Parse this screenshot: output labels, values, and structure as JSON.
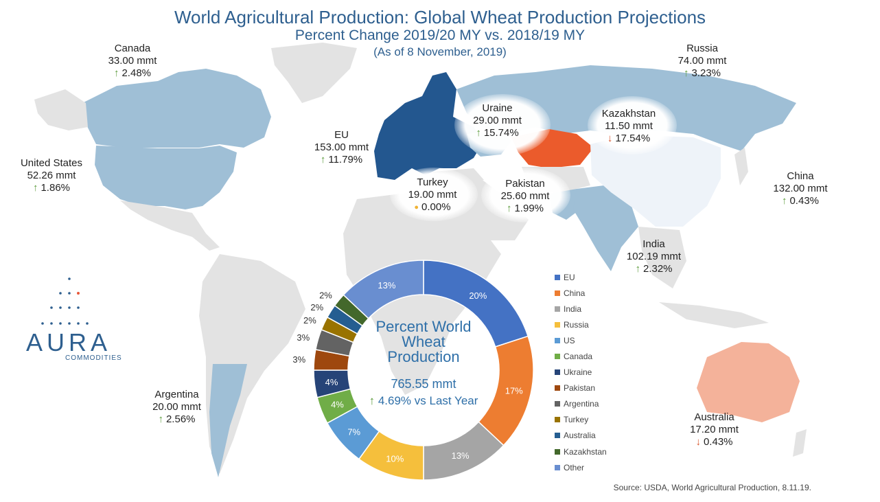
{
  "title": "World Agricultural Production: Global Wheat Production Projections",
  "subtitle": "Percent Change 2019/20 MY vs. 2018/19 MY",
  "date_note": "(As of 8 November, 2019)",
  "source": "Source: USDA, World Agricultural Production, 8.11.19.",
  "logo": {
    "name": "AURA",
    "sub": "COMMODITIES"
  },
  "colors": {
    "map_land": "#e3e3e3",
    "map_up": "#9fbfd6",
    "map_dark": "#23578f",
    "map_down": "#eb5b2c",
    "map_china": "#eef3f9",
    "map_australia": "#f4b29a",
    "title": "#2e5f8f"
  },
  "countries": [
    {
      "id": "canada",
      "name": "Canada",
      "value": "33.00 mmt",
      "change": "2.48%",
      "dir": "up"
    },
    {
      "id": "us",
      "name": "United States",
      "value": "52.26 mmt",
      "change": "1.86%",
      "dir": "up"
    },
    {
      "id": "eu",
      "name": "EU",
      "value": "153.00 mmt",
      "change": "11.79%",
      "dir": "up"
    },
    {
      "id": "ukraine",
      "name": "Uraine",
      "value": "29.00 mmt",
      "change": "15.74%",
      "dir": "up"
    },
    {
      "id": "russia",
      "name": "Russia",
      "value": "74.00 mmt",
      "change": "3.23%",
      "dir": "up"
    },
    {
      "id": "kazakhstan",
      "name": "Kazakhstan",
      "value": "11.50 mmt",
      "change": "17.54%",
      "dir": "down"
    },
    {
      "id": "turkey",
      "name": "Turkey",
      "value": "19.00 mmt",
      "change": "0.00%",
      "dir": "flat"
    },
    {
      "id": "pakistan",
      "name": "Pakistan",
      "value": "25.60 mmt",
      "change": "1.99%",
      "dir": "up"
    },
    {
      "id": "china",
      "name": "China",
      "value": "132.00 mmt",
      "change": "0.43%",
      "dir": "up"
    },
    {
      "id": "india",
      "name": "India",
      "value": "102.19 mmt",
      "change": "2.32%",
      "dir": "up"
    },
    {
      "id": "argentina",
      "name": "Argentina",
      "value": "20.00 mmt",
      "change": "2.56%",
      "dir": "up"
    },
    {
      "id": "australia",
      "name": "Australia",
      "value": "17.20 mmt",
      "change": "0.43%",
      "dir": "down"
    }
  ],
  "chart_data": {
    "type": "pie",
    "donut": true,
    "title": "Percent World Wheat Production",
    "center_value": "765.55 mmt",
    "center_change": "4.69% vs Last Year",
    "categories": [
      "EU",
      "China",
      "India",
      "Russia",
      "US",
      "Canada",
      "Ukraine",
      "Pakistan",
      "Argentina",
      "Turkey",
      "Australia",
      "Kazakhstan",
      "Other"
    ],
    "values": [
      20,
      17,
      13,
      10,
      7,
      4,
      4,
      3,
      3,
      2,
      2,
      2,
      13
    ],
    "labels": [
      "20%",
      "17%",
      "13%",
      "10%",
      "7%",
      "4%",
      "4%",
      "3%",
      "3%",
      "2%",
      "2%",
      "2%",
      "13%"
    ],
    "colors": [
      "#4472c4",
      "#ed7d31",
      "#a5a5a5",
      "#f5bf3c",
      "#5b9bd5",
      "#70ad47",
      "#264478",
      "#9e480e",
      "#636363",
      "#997300",
      "#255e91",
      "#43682b",
      "#698ed0"
    ],
    "legend_position": "right"
  }
}
